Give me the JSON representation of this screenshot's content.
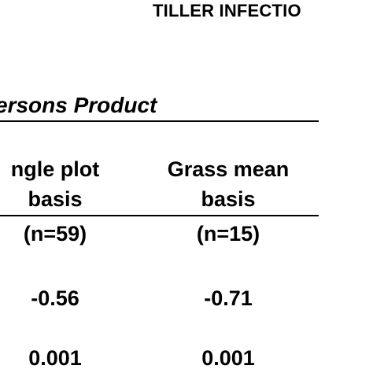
{
  "header": {
    "title": "TILLER INFECTIO"
  },
  "table": {
    "subtitle": "ersons Product",
    "columns": [
      {
        "heading_line1": "ngle plot",
        "heading_line2": "basis",
        "n": "(n=59)",
        "values": [
          "-0.56",
          "0.001"
        ]
      },
      {
        "heading_line1": "Grass mean",
        "heading_line2": "basis",
        "n": "(n=15)",
        "values": [
          "-0.71",
          "0.001"
        ]
      }
    ]
  }
}
